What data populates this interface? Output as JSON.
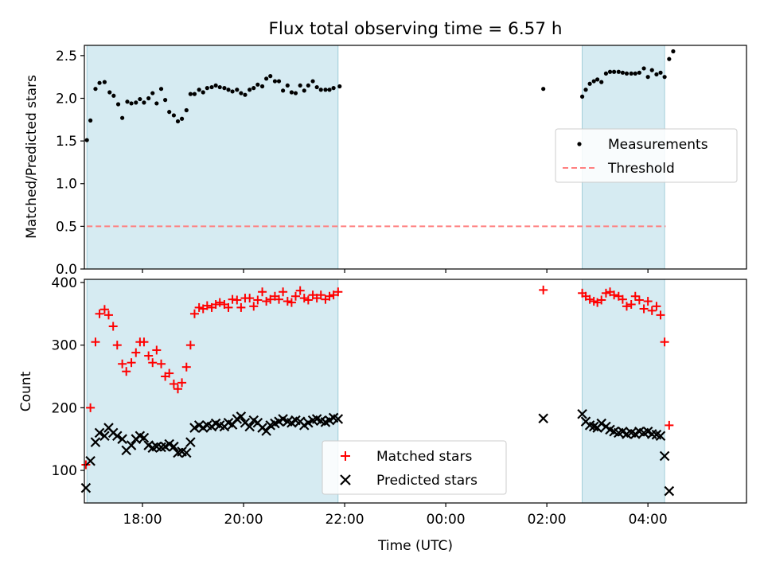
{
  "chart_data": [
    {
      "type": "scatter",
      "title": "Flux total observing time = 6.57 h",
      "xlabel": "",
      "ylabel": "Matched/Predicted stars",
      "ylim": [
        0,
        2.62
      ],
      "yticks": [
        0.0,
        0.5,
        1.0,
        1.5,
        2.0,
        2.5
      ],
      "ytick_labels": [
        "0.0",
        "0.5",
        "1.0",
        "1.5",
        "2.0",
        "2.5"
      ],
      "xlim_hours": [
        16.85,
        29.95
      ],
      "x_axis_time_ticks": [
        "18:00",
        "20:00",
        "22:00",
        "00:00",
        "02:00",
        "04:00"
      ],
      "legend_position": "center-right",
      "shaded_intervals_utc": [
        [
          "16.9",
          "21.87"
        ],
        [
          "02.7",
          "04.33"
        ]
      ],
      "series": [
        {
          "name": "Measurements",
          "marker": "dot",
          "color": "#000000",
          "points": [
            [
              16.9,
              1.51
            ],
            [
              16.97,
              1.74
            ],
            [
              17.07,
              2.11
            ],
            [
              17.15,
              2.18
            ],
            [
              17.25,
              2.19
            ],
            [
              17.35,
              2.07
            ],
            [
              17.43,
              2.03
            ],
            [
              17.52,
              1.93
            ],
            [
              17.6,
              1.77
            ],
            [
              17.7,
              1.96
            ],
            [
              17.78,
              1.94
            ],
            [
              17.87,
              1.95
            ],
            [
              17.95,
              1.99
            ],
            [
              18.03,
              1.95
            ],
            [
              18.12,
              2.0
            ],
            [
              18.2,
              2.06
            ],
            [
              18.28,
              1.94
            ],
            [
              18.37,
              2.11
            ],
            [
              18.45,
              1.98
            ],
            [
              18.53,
              1.84
            ],
            [
              18.62,
              1.8
            ],
            [
              18.7,
              1.73
            ],
            [
              18.78,
              1.76
            ],
            [
              18.87,
              1.86
            ],
            [
              18.95,
              2.05
            ],
            [
              19.03,
              2.05
            ],
            [
              19.12,
              2.1
            ],
            [
              19.2,
              2.07
            ],
            [
              19.28,
              2.12
            ],
            [
              19.37,
              2.13
            ],
            [
              19.45,
              2.15
            ],
            [
              19.53,
              2.13
            ],
            [
              19.62,
              2.12
            ],
            [
              19.7,
              2.1
            ],
            [
              19.78,
              2.08
            ],
            [
              19.87,
              2.1
            ],
            [
              19.95,
              2.06
            ],
            [
              20.03,
              2.04
            ],
            [
              20.12,
              2.1
            ],
            [
              20.2,
              2.12
            ],
            [
              20.28,
              2.16
            ],
            [
              20.37,
              2.14
            ],
            [
              20.45,
              2.23
            ],
            [
              20.53,
              2.26
            ],
            [
              20.62,
              2.2
            ],
            [
              20.7,
              2.2
            ],
            [
              20.78,
              2.09
            ],
            [
              20.87,
              2.15
            ],
            [
              20.95,
              2.07
            ],
            [
              21.03,
              2.06
            ],
            [
              21.12,
              2.15
            ],
            [
              21.2,
              2.09
            ],
            [
              21.28,
              2.15
            ],
            [
              21.37,
              2.2
            ],
            [
              21.45,
              2.13
            ],
            [
              21.53,
              2.1
            ],
            [
              21.62,
              2.1
            ],
            [
              21.7,
              2.1
            ],
            [
              21.78,
              2.12
            ],
            [
              21.9,
              2.14
            ],
            [
              25.93,
              2.11
            ],
            [
              26.7,
              2.02
            ],
            [
              26.77,
              2.1
            ],
            [
              26.85,
              2.17
            ],
            [
              26.93,
              2.2
            ],
            [
              27.0,
              2.22
            ],
            [
              27.08,
              2.19
            ],
            [
              27.17,
              2.29
            ],
            [
              27.25,
              2.31
            ],
            [
              27.33,
              2.31
            ],
            [
              27.42,
              2.31
            ],
            [
              27.5,
              2.3
            ],
            [
              27.58,
              2.29
            ],
            [
              27.67,
              2.29
            ],
            [
              27.75,
              2.29
            ],
            [
              27.83,
              2.3
            ],
            [
              27.92,
              2.35
            ],
            [
              28.0,
              2.25
            ],
            [
              28.08,
              2.33
            ],
            [
              28.17,
              2.28
            ],
            [
              28.25,
              2.3
            ],
            [
              28.33,
              2.25
            ],
            [
              28.42,
              2.46
            ],
            [
              28.5,
              2.55
            ]
          ]
        },
        {
          "name": "Threshold",
          "marker": "dashed-line",
          "color": "#ff7f7f",
          "points": [
            [
              16.9,
              0.5
            ],
            [
              28.35,
              0.5
            ]
          ]
        }
      ]
    },
    {
      "type": "scatter",
      "title": "",
      "xlabel": "Time (UTC)",
      "ylabel": "Count",
      "ylim": [
        48,
        405
      ],
      "yticks": [
        100,
        200,
        300,
        400
      ],
      "ytick_labels": [
        "100",
        "200",
        "300",
        "400"
      ],
      "xlim_hours": [
        16.85,
        29.95
      ],
      "x_axis_time_ticks": [
        "18:00",
        "20:00",
        "22:00",
        "00:00",
        "02:00",
        "04:00"
      ],
      "legend_position": "bottom-center",
      "series": [
        {
          "name": "Matched stars",
          "marker": "plus",
          "color": "#ff0000",
          "points": [
            [
              16.88,
              109
            ],
            [
              16.97,
              200
            ],
            [
              17.07,
              305
            ],
            [
              17.15,
              350
            ],
            [
              17.25,
              357
            ],
            [
              17.33,
              348
            ],
            [
              17.42,
              330
            ],
            [
              17.5,
              300
            ],
            [
              17.6,
              270
            ],
            [
              17.68,
              258
            ],
            [
              17.78,
              272
            ],
            [
              17.87,
              288
            ],
            [
              17.95,
              305
            ],
            [
              18.03,
              305
            ],
            [
              18.12,
              283
            ],
            [
              18.2,
              272
            ],
            [
              18.28,
              292
            ],
            [
              18.37,
              270
            ],
            [
              18.45,
              250
            ],
            [
              18.53,
              255
            ],
            [
              18.62,
              238
            ],
            [
              18.7,
              230
            ],
            [
              18.78,
              240
            ],
            [
              18.87,
              265
            ],
            [
              18.95,
              300
            ],
            [
              19.03,
              350
            ],
            [
              19.12,
              360
            ],
            [
              19.2,
              358
            ],
            [
              19.28,
              363
            ],
            [
              19.37,
              360
            ],
            [
              19.45,
              365
            ],
            [
              19.53,
              368
            ],
            [
              19.62,
              365
            ],
            [
              19.7,
              360
            ],
            [
              19.78,
              373
            ],
            [
              19.87,
              372
            ],
            [
              19.95,
              360
            ],
            [
              20.03,
              375
            ],
            [
              20.12,
              375
            ],
            [
              20.2,
              362
            ],
            [
              20.28,
              372
            ],
            [
              20.37,
              385
            ],
            [
              20.45,
              370
            ],
            [
              20.53,
              373
            ],
            [
              20.62,
              378
            ],
            [
              20.7,
              373
            ],
            [
              20.78,
              385
            ],
            [
              20.87,
              370
            ],
            [
              20.95,
              368
            ],
            [
              21.03,
              378
            ],
            [
              21.12,
              387
            ],
            [
              21.2,
              375
            ],
            [
              21.28,
              372
            ],
            [
              21.37,
              380
            ],
            [
              21.45,
              375
            ],
            [
              21.53,
              380
            ],
            [
              21.62,
              373
            ],
            [
              21.7,
              378
            ],
            [
              21.78,
              380
            ],
            [
              21.87,
              385
            ],
            [
              25.93,
              388
            ],
            [
              26.7,
              383
            ],
            [
              26.77,
              378
            ],
            [
              26.85,
              373
            ],
            [
              26.93,
              370
            ],
            [
              27.0,
              368
            ],
            [
              27.08,
              372
            ],
            [
              27.17,
              383
            ],
            [
              27.25,
              385
            ],
            [
              27.33,
              380
            ],
            [
              27.42,
              378
            ],
            [
              27.5,
              373
            ],
            [
              27.58,
              362
            ],
            [
              27.67,
              365
            ],
            [
              27.75,
              378
            ],
            [
              27.83,
              372
            ],
            [
              27.92,
              358
            ],
            [
              28.0,
              370
            ],
            [
              28.08,
              355
            ],
            [
              28.17,
              362
            ],
            [
              28.25,
              348
            ],
            [
              28.33,
              305
            ],
            [
              28.42,
              172
            ]
          ]
        },
        {
          "name": "Predicted stars",
          "marker": "x",
          "color": "#000000",
          "points": [
            [
              16.88,
              72
            ],
            [
              16.97,
              115
            ],
            [
              17.07,
              145
            ],
            [
              17.15,
              160
            ],
            [
              17.25,
              155
            ],
            [
              17.33,
              168
            ],
            [
              17.42,
              160
            ],
            [
              17.5,
              155
            ],
            [
              17.6,
              150
            ],
            [
              17.68,
              132
            ],
            [
              17.78,
              140
            ],
            [
              17.87,
              150
            ],
            [
              17.95,
              155
            ],
            [
              18.03,
              152
            ],
            [
              18.12,
              140
            ],
            [
              18.2,
              136
            ],
            [
              18.28,
              138
            ],
            [
              18.37,
              137
            ],
            [
              18.45,
              138
            ],
            [
              18.53,
              142
            ],
            [
              18.62,
              138
            ],
            [
              18.7,
              128
            ],
            [
              18.78,
              130
            ],
            [
              18.87,
              128
            ],
            [
              18.95,
              145
            ],
            [
              19.03,
              168
            ],
            [
              19.12,
              172
            ],
            [
              19.2,
              168
            ],
            [
              19.28,
              172
            ],
            [
              19.37,
              170
            ],
            [
              19.45,
              175
            ],
            [
              19.53,
              172
            ],
            [
              19.62,
              170
            ],
            [
              19.7,
              176
            ],
            [
              19.78,
              173
            ],
            [
              19.87,
              182
            ],
            [
              19.95,
              186
            ],
            [
              20.03,
              176
            ],
            [
              20.12,
              170
            ],
            [
              20.2,
              180
            ],
            [
              20.28,
              176
            ],
            [
              20.37,
              168
            ],
            [
              20.45,
              163
            ],
            [
              20.53,
              172
            ],
            [
              20.62,
              175
            ],
            [
              20.7,
              178
            ],
            [
              20.78,
              182
            ],
            [
              20.87,
              178
            ],
            [
              20.95,
              176
            ],
            [
              21.03,
              180
            ],
            [
              21.12,
              178
            ],
            [
              21.2,
              172
            ],
            [
              21.28,
              176
            ],
            [
              21.37,
              180
            ],
            [
              21.45,
              182
            ],
            [
              21.53,
              179
            ],
            [
              21.62,
              177
            ],
            [
              21.7,
              180
            ],
            [
              21.78,
              184
            ],
            [
              21.87,
              182
            ],
            [
              25.93,
              183
            ],
            [
              26.7,
              190
            ],
            [
              26.77,
              178
            ],
            [
              26.85,
              172
            ],
            [
              26.93,
              170
            ],
            [
              27.0,
              168
            ],
            [
              27.08,
              175
            ],
            [
              27.17,
              170
            ],
            [
              27.25,
              165
            ],
            [
              27.33,
              162
            ],
            [
              27.42,
              160
            ],
            [
              27.5,
              162
            ],
            [
              27.58,
              158
            ],
            [
              27.67,
              160
            ],
            [
              27.75,
              158
            ],
            [
              27.83,
              162
            ],
            [
              27.92,
              160
            ],
            [
              28.0,
              162
            ],
            [
              28.08,
              158
            ],
            [
              28.17,
              157
            ],
            [
              28.25,
              155
            ],
            [
              28.33,
              123
            ],
            [
              28.42,
              67
            ]
          ]
        }
      ]
    }
  ]
}
